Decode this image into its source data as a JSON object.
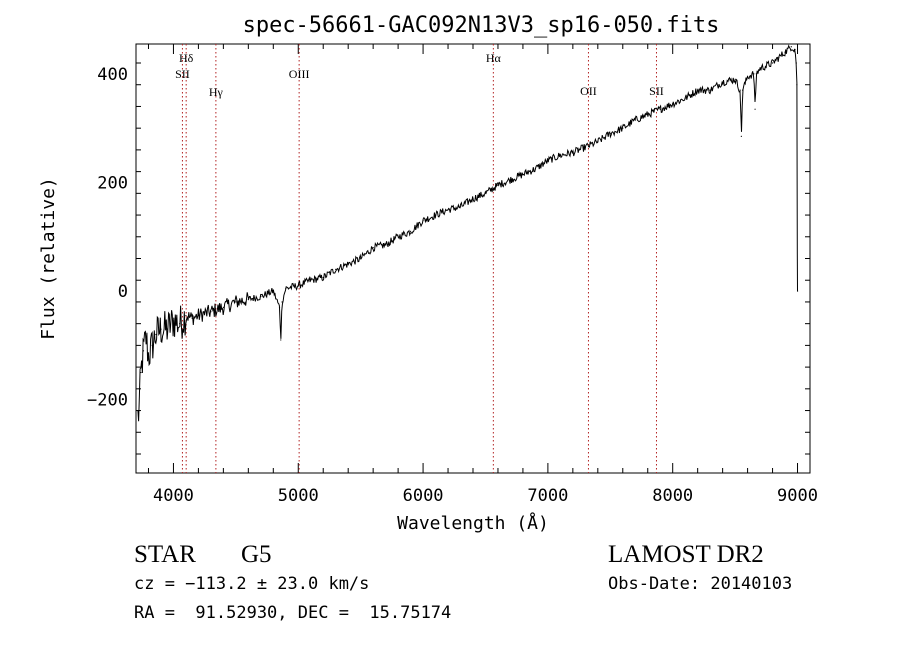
{
  "chart_data": {
    "type": "line",
    "title": "spec-56661-GAC092N13V3_sp16-050.fits",
    "xlabel": "Wavelength (Å)",
    "ylabel": "Flux (relative)",
    "xlim": [
      3700,
      9100
    ],
    "ylim": [
      -335,
      455
    ],
    "xticks": [
      4000,
      5000,
      6000,
      7000,
      8000,
      9000
    ],
    "yticks": [
      -200,
      0,
      200,
      400
    ],
    "grid": false,
    "series": [
      {
        "x": [
          3720,
          3740,
          3760,
          3780,
          3800,
          3830,
          3860,
          3900,
          3950,
          4000,
          4050,
          4100,
          4150,
          4200,
          4300,
          4400,
          4500,
          4600,
          4700,
          4800,
          4850,
          4860,
          4870,
          4900,
          5000,
          5100,
          5200,
          5300,
          5400,
          5500,
          5600,
          5700,
          5800,
          5900,
          6000,
          6100,
          6200,
          6300,
          6400,
          6500,
          6600,
          6700,
          6800,
          6900,
          7000,
          7100,
          7200,
          7300,
          7400,
          7500,
          7600,
          7700,
          7800,
          7850,
          7900,
          8000,
          8100,
          8200,
          8300,
          8400,
          8500,
          8540,
          8550,
          8560,
          8600,
          8650,
          8660,
          8670,
          8700,
          8800,
          8850,
          8900,
          8950,
          8980,
          8990,
          8995
        ],
        "y": [
          -230,
          -150,
          -110,
          -85,
          -120,
          -100,
          -80,
          -70,
          -70,
          -55,
          -60,
          -45,
          -50,
          -45,
          -38,
          -30,
          -20,
          -15,
          -10,
          0,
          -30,
          -90,
          -20,
          5,
          10,
          20,
          25,
          40,
          50,
          60,
          80,
          85,
          100,
          110,
          130,
          140,
          150,
          155,
          170,
          180,
          195,
          205,
          215,
          225,
          240,
          250,
          255,
          265,
          275,
          290,
          300,
          315,
          325,
          330,
          335,
          345,
          355,
          370,
          370,
          385,
          390,
          370,
          285,
          370,
          395,
          400,
          335,
          400,
          410,
          420,
          430,
          440,
          450,
          445,
          420,
          380
        ]
      }
    ],
    "lines": [
      {
        "label": "Hδ",
        "x": 4102
      },
      {
        "label": "SII",
        "x": 4072
      },
      {
        "label": "Hγ",
        "x": 4340
      },
      {
        "label": "OIII",
        "x": 5007
      },
      {
        "label": "Hα",
        "x": 6563
      },
      {
        "label": "OII",
        "x": 7325
      },
      {
        "label": "SII",
        "x": 7870
      }
    ],
    "line_color": "#000000",
    "marker_color": "#b22222"
  },
  "info": {
    "class": "STAR",
    "subclass": "G5",
    "survey": "LAMOST DR2",
    "cz": "cz = −113.2 ± 23.0 km/s",
    "obs_date": "Obs-Date: 20140103",
    "coords": "RA =  91.52930, DEC =  15.75174"
  }
}
